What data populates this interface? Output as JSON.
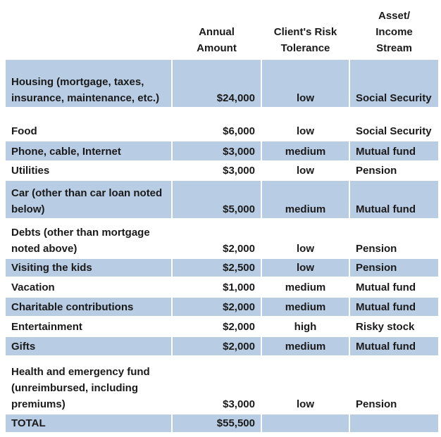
{
  "table": {
    "header": [
      "Annual Amount",
      "Client's Risk Tolerance",
      "Asset/ Income Stream"
    ],
    "rows": [
      [
        "Housing (mortgage, taxes, insurance, maintenance, etc.)",
        "$24,000",
        "low",
        "Social Security"
      ],
      [
        "Food",
        "$6,000",
        "low",
        "Social Security"
      ],
      [
        "Phone, cable, Internet",
        "$3,000",
        "medium",
        "Mutual fund"
      ],
      [
        "Utilities",
        "$3,000",
        "low",
        "Pension"
      ],
      [
        "Car (other than car loan noted below)",
        "$5,000",
        "medium",
        "Mutual fund"
      ],
      [
        "Debts (other than mortgage noted above)",
        "$2,000",
        "low",
        "Pension"
      ],
      [
        "Visiting the kids",
        "$2,500",
        "low",
        "Pension"
      ],
      [
        "Vacation",
        "$1,000",
        "medium",
        "Mutual fund"
      ],
      [
        "Charitable contributions",
        "$2,000",
        "medium",
        "Mutual fund"
      ],
      [
        "Entertainment",
        "$2,000",
        "high",
        "Risky stock"
      ],
      [
        "Gifts",
        "$2,000",
        "medium",
        "Mutual fund"
      ],
      [
        "Health and emergency fund (unreimbursed, including premiums)",
        "$3,000",
        "low",
        "Pension"
      ],
      [
        "TOTAL",
        "$55,500"
      ]
    ]
  }
}
